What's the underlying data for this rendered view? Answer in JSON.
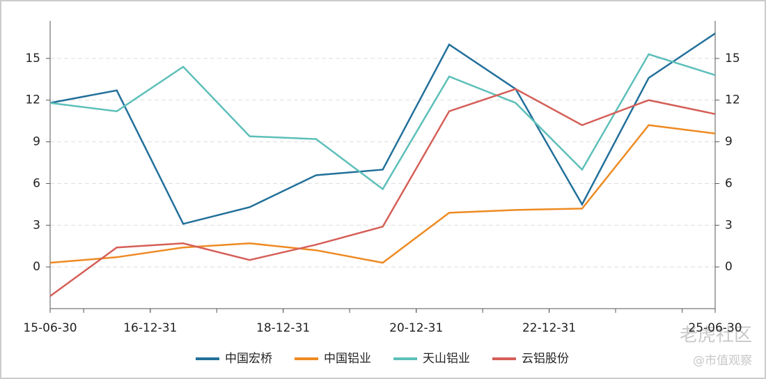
{
  "chart_data": {
    "type": "line",
    "x": [
      "15-06-30",
      "16-06-30",
      "17-06-30",
      "18-06-30",
      "19-06-30",
      "20-06-30",
      "21-06-30",
      "22-06-30",
      "23-06-30",
      "24-06-30",
      "25-06-30"
    ],
    "xlim": [
      "15-06-30",
      "25-06-30"
    ],
    "xticks": [
      "15-06-30",
      "16-12-31",
      "18-12-31",
      "20-12-31",
      "22-12-31",
      "25-06-30"
    ],
    "xminorticks": [
      "15-12-31",
      "16-12-31",
      "17-12-31",
      "18-12-31",
      "19-12-31",
      "20-12-31",
      "21-12-31",
      "22-12-31",
      "23-12-31",
      "24-12-31"
    ],
    "ylim": [
      -3,
      17.7
    ],
    "yticks": [
      0,
      3,
      6,
      9,
      12,
      15
    ],
    "y2lim": [
      -3,
      17.7
    ],
    "y2ticks": [
      0,
      3,
      6,
      9,
      12,
      15
    ],
    "grid": true,
    "legend": "bottom",
    "series": [
      {
        "name": "中国宏桥",
        "color": "#22709a",
        "values": [
          11.8,
          12.7,
          3.1,
          4.3,
          6.6,
          7.0,
          16.0,
          12.8,
          4.5,
          13.6,
          16.8
        ]
      },
      {
        "name": "中国铝业",
        "color": "#ee8a22",
        "values": [
          0.3,
          0.7,
          1.4,
          1.7,
          1.2,
          0.3,
          3.9,
          4.1,
          4.2,
          10.2,
          9.6
        ]
      },
      {
        "name": "天山铝业",
        "color": "#5dbfb9",
        "values": [
          11.8,
          11.2,
          14.4,
          9.4,
          9.2,
          5.6,
          13.7,
          11.8,
          7.0,
          15.3,
          13.8
        ]
      },
      {
        "name": "云铝股份",
        "color": "#d55f58",
        "values": [
          -2.1,
          1.4,
          1.7,
          0.5,
          1.6,
          2.9,
          11.2,
          12.8,
          10.2,
          12.0,
          11.0
        ]
      }
    ]
  },
  "watermark": {
    "brand": "老虎社区",
    "author": "@市值观察"
  }
}
